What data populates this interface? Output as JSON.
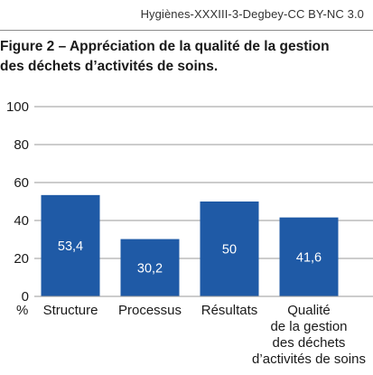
{
  "header": {
    "source": "Hygiènes-XXXIII-3-Degbey-CC BY-NC 3.0"
  },
  "chart_data": {
    "type": "bar",
    "title_lines": [
      "Figure 2 – Appréciation de la qualité de la gestion",
      "des déchets d’activités de soins."
    ],
    "categories": [
      [
        "Structure"
      ],
      [
        "Processus"
      ],
      [
        "Résultats"
      ],
      [
        "Qualité",
        "de la gestion",
        "des déchets",
        "d’activités de soins"
      ]
    ],
    "values": [
      53.4,
      30.2,
      50,
      41.6
    ],
    "value_labels": [
      "53,4",
      "30,2",
      "50",
      "41,6"
    ],
    "ylim": [
      0,
      100
    ],
    "yticks": [
      0,
      20,
      40,
      60,
      80,
      100
    ],
    "y_unit": "%",
    "grid": true,
    "bar_color": "#1f5aa6",
    "grid_color": "#9a9a9a"
  }
}
